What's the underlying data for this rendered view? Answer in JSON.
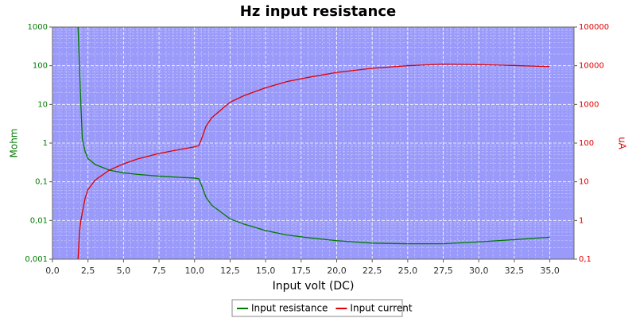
{
  "chart_data": {
    "type": "line",
    "title": "Hz input resistance",
    "x_label": "Input volt (DC)",
    "y_label": "Mohm",
    "y2_label": "uA",
    "x": [
      1.8,
      1.9,
      2.0,
      2.1,
      2.3,
      2.5,
      3.0,
      4,
      5,
      6,
      7.5,
      9,
      10,
      10.3,
      10.5,
      10.8,
      11.2,
      12,
      12.5,
      13.5,
      15,
      16.5,
      18,
      20,
      22.5,
      25,
      27.5,
      30,
      32.5,
      35
    ],
    "xlim": [
      0,
      36.7
    ],
    "xticks": [
      {
        "value": 0,
        "label": "0,0"
      },
      {
        "value": 2.5,
        "label": "2,5"
      },
      {
        "value": 5,
        "label": "5,0"
      },
      {
        "value": 7.5,
        "label": "7,5"
      },
      {
        "value": 10,
        "label": "10,0"
      },
      {
        "value": 12.5,
        "label": "12,5"
      },
      {
        "value": 15,
        "label": "15,0"
      },
      {
        "value": 17.5,
        "label": "17,5"
      },
      {
        "value": 20,
        "label": "20,0"
      },
      {
        "value": 22.5,
        "label": "22,5"
      },
      {
        "value": 25,
        "label": "25,0"
      },
      {
        "value": 27.5,
        "label": "27,5"
      },
      {
        "value": 30,
        "label": "30,0"
      },
      {
        "value": 32.5,
        "label": "32,5"
      },
      {
        "value": 35,
        "label": "35,0"
      }
    ],
    "yscale": "log",
    "ylim": [
      0.001,
      1000
    ],
    "yticks": [
      {
        "value": 0.001,
        "label": "0,001"
      },
      {
        "value": 0.01,
        "label": "0,01"
      },
      {
        "value": 0.1,
        "label": "0,1"
      },
      1,
      10,
      100,
      1000
    ],
    "y2scale": "log",
    "y2lim": [
      0.1,
      100000
    ],
    "y2ticks": [
      {
        "value": 0.1,
        "label": "0,1"
      },
      1,
      10,
      100,
      1000,
      10000,
      100000
    ],
    "grid": true,
    "legend": "bottom",
    "series": [
      {
        "name": "Input resistance",
        "color": "#007a00",
        "values": [
          1000,
          100,
          10,
          1.3,
          0.6,
          0.4,
          0.28,
          0.2,
          0.17,
          0.155,
          0.14,
          0.13,
          0.125,
          0.12,
          0.08,
          0.04,
          0.025,
          0.015,
          0.011,
          0.008,
          0.0055,
          0.0042,
          0.0036,
          0.003,
          0.0026,
          0.0025,
          0.0025,
          0.0028,
          0.0032,
          0.0037
        ]
      },
      {
        "name": "Input current",
        "color": "#e00000",
        "axis": "y2",
        "values": [
          0.1,
          0.5,
          1,
          1.6,
          3.8,
          6.3,
          11,
          20,
          29,
          39,
          54,
          69,
          80,
          86,
          130,
          270,
          450,
          800,
          1140,
          1700,
          2700,
          3900,
          5000,
          6700,
          8600,
          10000,
          11000,
          10700,
          10100,
          9500
        ]
      }
    ]
  }
}
